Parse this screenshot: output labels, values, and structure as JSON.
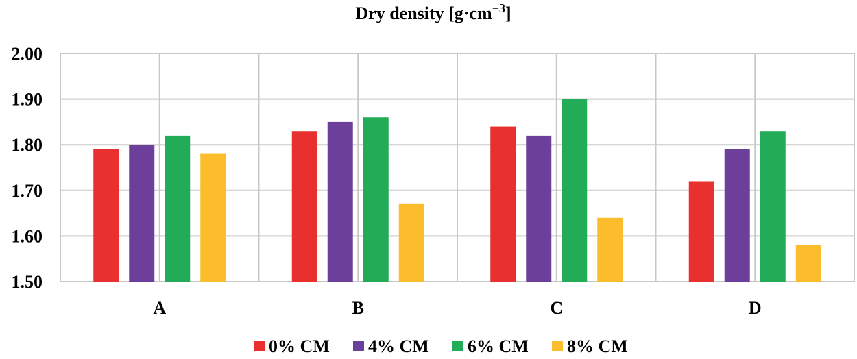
{
  "chart_data": {
    "type": "bar",
    "title_main": "Dry density [g·cm",
    "title_sup": "−3",
    "title_end": "]",
    "categories": [
      "A",
      "B",
      "C",
      "D"
    ],
    "series": [
      {
        "name": "0% CM",
        "color": "#e8302f",
        "values": [
          1.79,
          1.83,
          1.84,
          1.72
        ]
      },
      {
        "name": "4% CM",
        "color": "#6c3f9a",
        "values": [
          1.8,
          1.85,
          1.82,
          1.79
        ]
      },
      {
        "name": "6% CM",
        "color": "#22ac58",
        "values": [
          1.82,
          1.86,
          1.9,
          1.83
        ]
      },
      {
        "name": "8% CM",
        "color": "#fbbd2c",
        "values": [
          1.78,
          1.67,
          1.64,
          1.58
        ]
      }
    ],
    "yticks": [
      "1.50",
      "1.60",
      "1.70",
      "1.80",
      "1.90",
      "2.00"
    ],
    "ylim": [
      1.5,
      2.0
    ],
    "xlabel": "",
    "ylabel": "",
    "grid": true,
    "legend": "bottom-center"
  }
}
